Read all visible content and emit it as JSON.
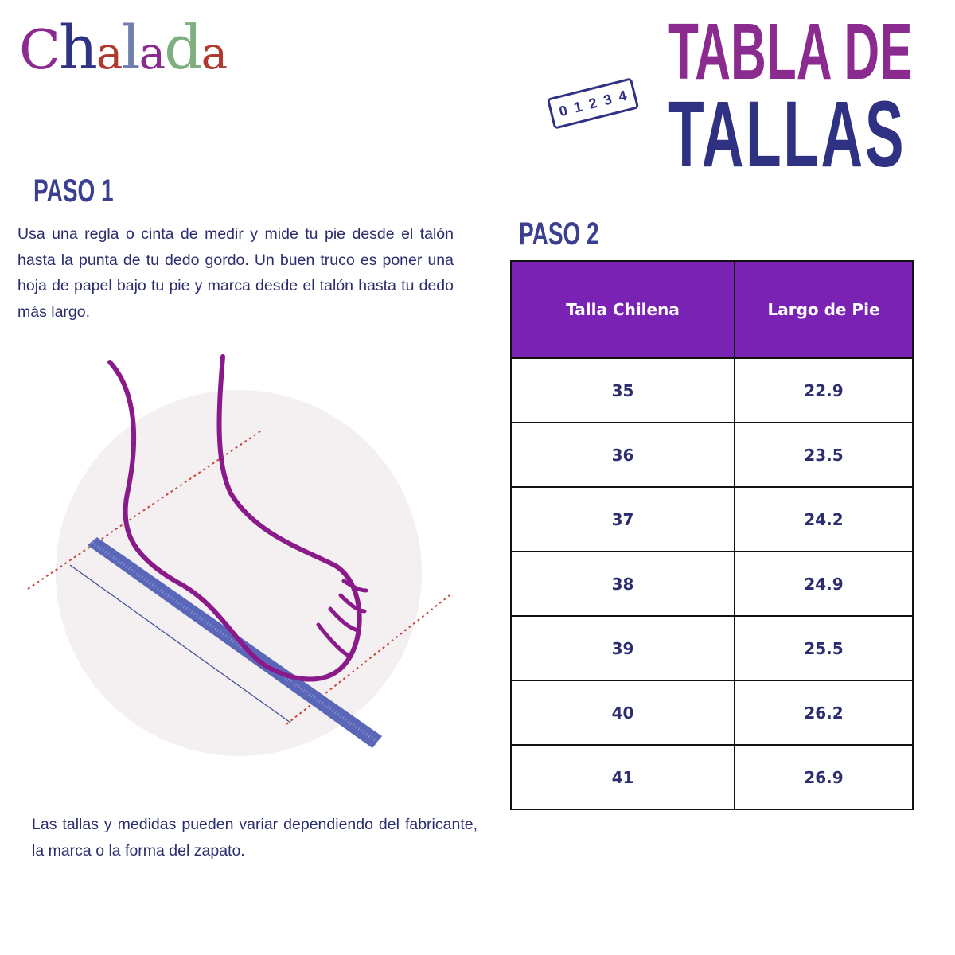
{
  "logo": {
    "text": "Chalada",
    "letters": [
      "C",
      "h",
      "a",
      "l",
      "a",
      "d",
      "a"
    ],
    "colors": [
      "#8c2b8f",
      "#2e3386",
      "#b03a2e",
      "#6e7fae",
      "#8c2b8f",
      "#7fae7f",
      "#b03a2e"
    ]
  },
  "title": {
    "line1": "TABLA DE",
    "line2": "TALLAS",
    "ruler_digits": [
      "0",
      "1",
      "2",
      "3",
      "4"
    ]
  },
  "step1": {
    "heading": "PASO 1",
    "text": "Usa una regla o cinta de medir y mide tu pie desde el talón hasta la punta de tu dedo gordo. Un buen truco es poner una hoja de papel bajo tu pie y marca desde el talón hasta tu dedo más largo.",
    "note": "Las tallas y medidas pueden variar dependiendo del fabricante, la marca o la forma del zapato."
  },
  "step2": {
    "heading": "PASO 2",
    "table": {
      "headers": [
        "Talla Chilena",
        "Largo de Pie"
      ],
      "rows": [
        [
          "35",
          "22.9"
        ],
        [
          "36",
          "23.5"
        ],
        [
          "37",
          "24.2"
        ],
        [
          "38",
          "24.9"
        ],
        [
          "39",
          "25.5"
        ],
        [
          "40",
          "26.2"
        ],
        [
          "41",
          "26.9"
        ]
      ]
    }
  },
  "colors": {
    "header_bg": "#7a22b4",
    "navy": "#2f3283",
    "purple": "#8b2b8f"
  }
}
